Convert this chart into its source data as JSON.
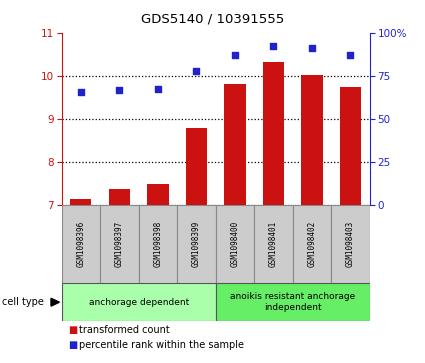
{
  "title": "GDS5140 / 10391555",
  "samples": [
    "GSM1098396",
    "GSM1098397",
    "GSM1098398",
    "GSM1098399",
    "GSM1098400",
    "GSM1098401",
    "GSM1098402",
    "GSM1098403"
  ],
  "bar_values": [
    7.15,
    7.38,
    7.48,
    8.78,
    9.82,
    10.32,
    10.02,
    9.73
  ],
  "dot_values": [
    9.62,
    9.68,
    9.7,
    10.12,
    10.48,
    10.68,
    10.65,
    10.48
  ],
  "ylim_left": [
    7,
    11
  ],
  "ylim_right": [
    0,
    100
  ],
  "yticks_left": [
    7,
    8,
    9,
    10,
    11
  ],
  "yticks_right": [
    0,
    25,
    50,
    75,
    100
  ],
  "ytick_labels_right": [
    "0",
    "25",
    "50",
    "75",
    "100%"
  ],
  "bar_color": "#CC1111",
  "dot_color": "#2222CC",
  "grid_color": "#000000",
  "groups": [
    {
      "label": "anchorage dependent",
      "indices": [
        0,
        1,
        2,
        3
      ],
      "color": "#aaffaa"
    },
    {
      "label": "anoikis resistant anchorage\nindependent",
      "indices": [
        4,
        5,
        6,
        7
      ],
      "color": "#66ee66"
    }
  ],
  "legend_items": [
    {
      "label": "transformed count",
      "color": "#CC1111"
    },
    {
      "label": "percentile rank within the sample",
      "color": "#2222CC"
    }
  ],
  "cell_type_label": "cell type",
  "left_axis_color": "#CC1111",
  "right_axis_color": "#2222CC",
  "bar_width": 0.55,
  "sample_box_color": "#cccccc",
  "sample_box_edge": "#888888"
}
